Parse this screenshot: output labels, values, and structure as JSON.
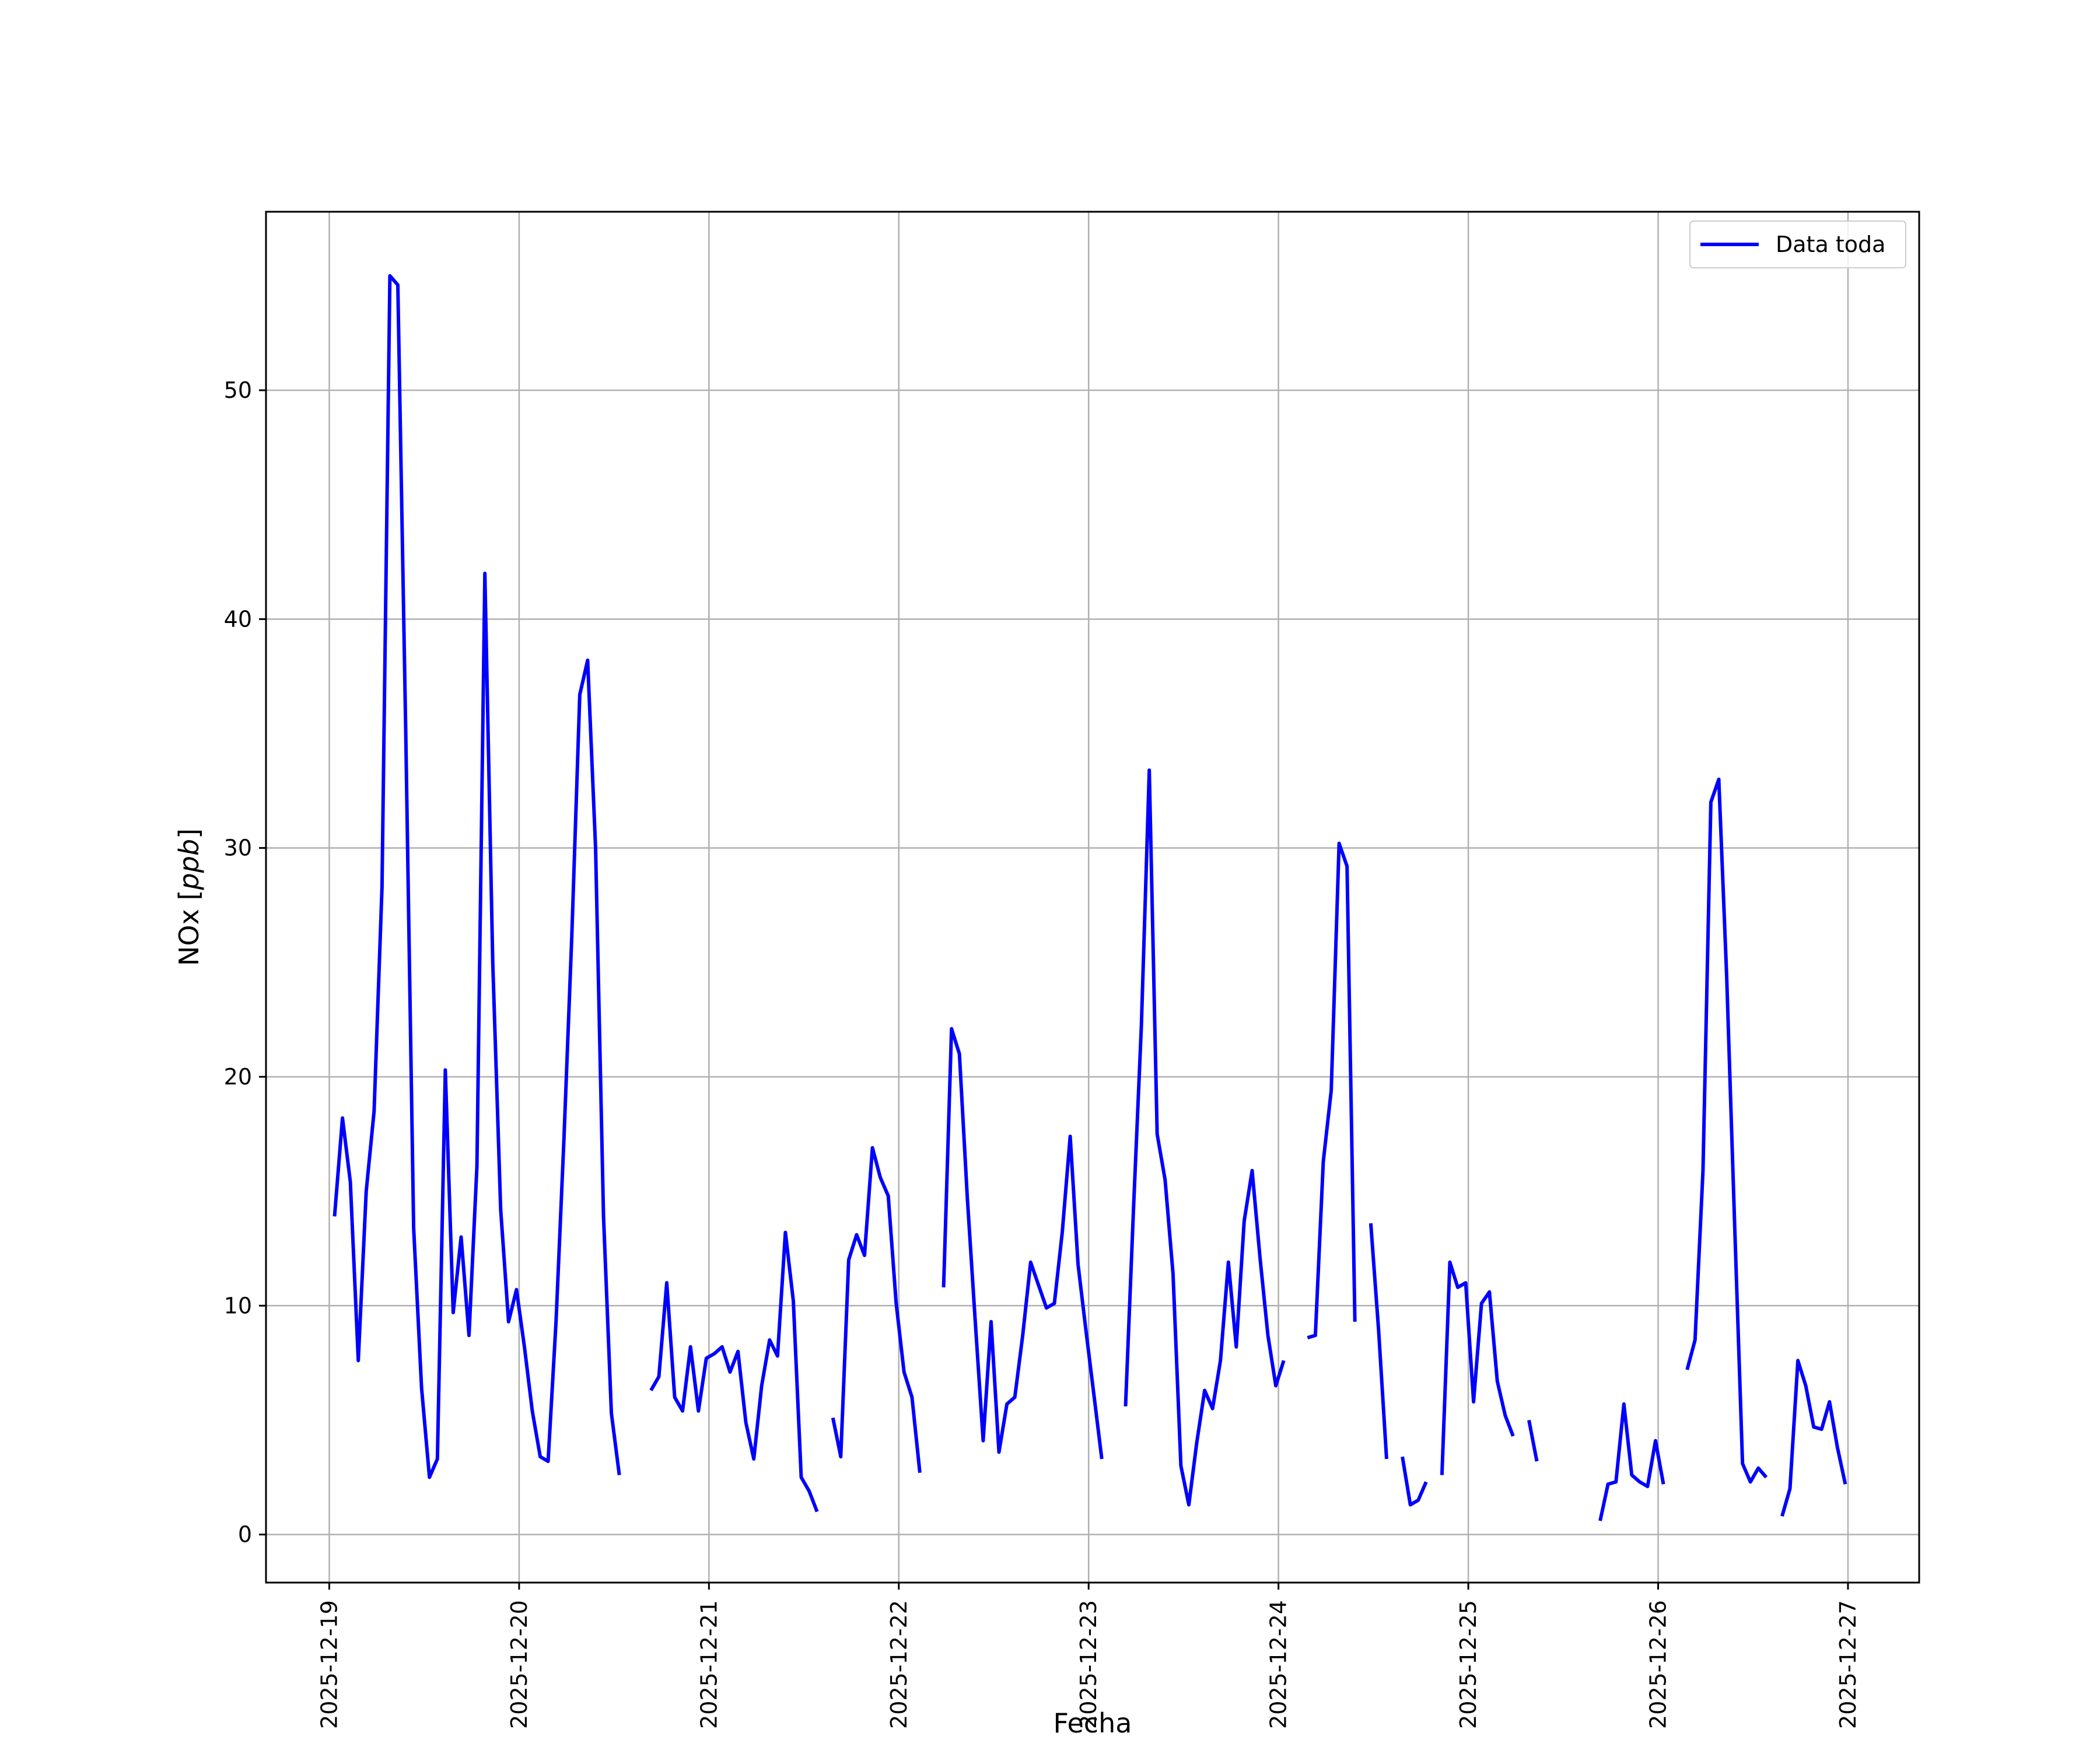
{
  "chart_data": {
    "type": "line",
    "title": "",
    "xlabel": "Fecha",
    "ylabel": "NOx [ppb]",
    "ylabel_main": "NOx [",
    "ylabel_unit": "ppb",
    "ylabel_close": "]",
    "x_unit": "date",
    "xlim": [
      "2025-12-18T16:00",
      "2025-12-27T09:00"
    ],
    "ylim": [
      -2.1,
      57.8
    ],
    "xticks": [
      "2025-12-19",
      "2025-12-20",
      "2025-12-21",
      "2025-12-22",
      "2025-12-23",
      "2025-12-24",
      "2025-12-25",
      "2025-12-26",
      "2025-12-27"
    ],
    "yticks": [
      0,
      10,
      20,
      30,
      40,
      50
    ],
    "ytick_labels": [
      "0",
      "10",
      "20",
      "30",
      "40",
      "50"
    ],
    "grid": true,
    "legend": {
      "position": "upper-right",
      "entries": [
        "Data toda"
      ]
    },
    "series": [
      {
        "name": "Data toda",
        "color": "#0000ff",
        "segments": [
          [
            [
              "2025-12-19T00:40",
              13.9
            ],
            [
              "2025-12-19T01:40",
              18.2
            ],
            [
              "2025-12-19T02:40",
              15.4
            ],
            [
              "2025-12-19T03:40",
              7.6
            ],
            [
              "2025-12-19T04:40",
              15.0
            ],
            [
              "2025-12-19T05:40",
              18.5
            ],
            [
              "2025-12-19T06:40",
              28.3
            ],
            [
              "2025-12-19T07:40",
              55.0
            ],
            [
              "2025-12-19T08:40",
              54.6
            ],
            [
              "2025-12-19T09:40",
              35.0
            ],
            [
              "2025-12-19T10:40",
              13.4
            ],
            [
              "2025-12-19T11:40",
              6.4
            ],
            [
              "2025-12-19T12:40",
              2.5
            ],
            [
              "2025-12-19T13:40",
              3.3
            ],
            [
              "2025-12-19T14:40",
              20.3
            ],
            [
              "2025-12-19T15:40",
              9.7
            ],
            [
              "2025-12-19T16:40",
              13.0
            ],
            [
              "2025-12-19T17:40",
              8.7
            ],
            [
              "2025-12-19T18:40",
              16.1
            ],
            [
              "2025-12-19T19:40",
              42.0
            ],
            [
              "2025-12-19T20:40",
              25.0
            ],
            [
              "2025-12-19T21:40",
              14.2
            ],
            [
              "2025-12-19T22:40",
              9.3
            ],
            [
              "2025-12-19T23:40",
              10.7
            ],
            [
              "2025-12-20T00:40",
              8.2
            ],
            [
              "2025-12-20T01:40",
              5.4
            ],
            [
              "2025-12-20T02:40",
              3.4
            ],
            [
              "2025-12-20T03:40",
              3.2
            ],
            [
              "2025-12-20T04:40",
              9.3
            ],
            [
              "2025-12-20T05:40",
              17.3
            ],
            [
              "2025-12-20T06:40",
              26.2
            ],
            [
              "2025-12-20T07:40",
              36.7
            ],
            [
              "2025-12-20T08:40",
              38.2
            ],
            [
              "2025-12-20T09:40",
              30.0
            ],
            [
              "2025-12-20T10:40",
              13.9
            ],
            [
              "2025-12-20T11:40",
              5.3
            ],
            [
              "2025-12-20T12:40",
              2.6
            ]
          ],
          [
            [
              "2025-12-20T16:40",
              6.3
            ],
            [
              "2025-12-20T17:40",
              6.9
            ],
            [
              "2025-12-20T18:40",
              11.0
            ],
            [
              "2025-12-20T19:40",
              6.0
            ],
            [
              "2025-12-20T20:40",
              5.4
            ],
            [
              "2025-12-20T21:40",
              8.2
            ],
            [
              "2025-12-20T22:40",
              5.4
            ],
            [
              "2025-12-20T23:40",
              7.7
            ],
            [
              "2025-12-21T00:40",
              7.9
            ],
            [
              "2025-12-21T01:40",
              8.2
            ],
            [
              "2025-12-21T02:40",
              7.1
            ],
            [
              "2025-12-21T03:40",
              8.0
            ],
            [
              "2025-12-21T04:40",
              4.9
            ],
            [
              "2025-12-21T05:40",
              3.3
            ],
            [
              "2025-12-21T06:40",
              6.5
            ],
            [
              "2025-12-21T07:40",
              8.5
            ],
            [
              "2025-12-21T08:40",
              7.8
            ],
            [
              "2025-12-21T09:40",
              13.2
            ],
            [
              "2025-12-21T10:40",
              10.2
            ],
            [
              "2025-12-21T11:40",
              2.5
            ],
            [
              "2025-12-21T12:40",
              1.9
            ],
            [
              "2025-12-21T13:40",
              1.0
            ]
          ],
          [
            [
              "2025-12-21T15:40",
              5.1
            ],
            [
              "2025-12-21T16:40",
              3.4
            ],
            [
              "2025-12-21T17:40",
              12.0
            ],
            [
              "2025-12-21T18:40",
              13.1
            ],
            [
              "2025-12-21T19:40",
              12.2
            ],
            [
              "2025-12-21T20:40",
              16.9
            ],
            [
              "2025-12-21T21:40",
              15.6
            ],
            [
              "2025-12-21T22:40",
              14.8
            ],
            [
              "2025-12-21T23:40",
              10.1
            ],
            [
              "2025-12-22T00:40",
              7.1
            ],
            [
              "2025-12-22T01:40",
              6.0
            ],
            [
              "2025-12-22T02:40",
              2.7
            ]
          ],
          [
            [
              "2025-12-22T05:40",
              10.8
            ],
            [
              "2025-12-22T06:40",
              22.1
            ],
            [
              "2025-12-22T07:40",
              21.0
            ],
            [
              "2025-12-22T08:40",
              14.7
            ],
            [
              "2025-12-22T09:40",
              9.3
            ],
            [
              "2025-12-22T10:40",
              4.1
            ],
            [
              "2025-12-22T11:40",
              9.3
            ],
            [
              "2025-12-22T12:40",
              3.6
            ],
            [
              "2025-12-22T13:40",
              5.7
            ],
            [
              "2025-12-22T14:40",
              6.0
            ],
            [
              "2025-12-22T15:40",
              8.7
            ],
            [
              "2025-12-22T16:40",
              11.9
            ],
            [
              "2025-12-22T17:40",
              10.9
            ],
            [
              "2025-12-22T18:40",
              9.9
            ],
            [
              "2025-12-22T19:40",
              10.1
            ],
            [
              "2025-12-22T20:40",
              13.2
            ],
            [
              "2025-12-22T21:40",
              17.4
            ],
            [
              "2025-12-22T22:40",
              11.8
            ],
            [
              "2025-12-22T23:40",
              8.9
            ],
            [
              "2025-12-23T00:40",
              6.1
            ],
            [
              "2025-12-23T01:40",
              3.3
            ]
          ],
          [
            [
              "2025-12-23T04:40",
              5.6
            ],
            [
              "2025-12-23T05:40",
              14.2
            ],
            [
              "2025-12-23T06:40",
              22.2
            ],
            [
              "2025-12-23T07:40",
              33.4
            ],
            [
              "2025-12-23T08:40",
              17.5
            ],
            [
              "2025-12-23T09:40",
              15.5
            ],
            [
              "2025-12-23T10:40",
              11.4
            ],
            [
              "2025-12-23T11:40",
              3.0
            ],
            [
              "2025-12-23T12:40",
              1.3
            ],
            [
              "2025-12-23T13:40",
              4.0
            ],
            [
              "2025-12-23T14:40",
              6.3
            ],
            [
              "2025-12-23T15:40",
              5.5
            ],
            [
              "2025-12-23T16:40",
              7.6
            ],
            [
              "2025-12-23T17:40",
              11.9
            ],
            [
              "2025-12-23T18:40",
              8.2
            ],
            [
              "2025-12-23T19:40",
              13.7
            ],
            [
              "2025-12-23T20:40",
              15.9
            ],
            [
              "2025-12-23T21:40",
              12.1
            ],
            [
              "2025-12-23T22:40",
              8.7
            ],
            [
              "2025-12-23T23:40",
              6.5
            ],
            [
              "2025-12-24T00:40",
              7.6
            ]
          ],
          [
            [
              "2025-12-24T03:40",
              8.6
            ],
            [
              "2025-12-24T04:40",
              8.7
            ],
            [
              "2025-12-24T05:40",
              16.3
            ],
            [
              "2025-12-24T06:40",
              19.4
            ],
            [
              "2025-12-24T07:40",
              30.2
            ],
            [
              "2025-12-24T08:40",
              29.2
            ],
            [
              "2025-12-24T09:40",
              9.3
            ]
          ],
          [
            [
              "2025-12-24T11:40",
              13.6
            ],
            [
              "2025-12-24T12:40",
              8.9
            ],
            [
              "2025-12-24T13:40",
              3.3
            ]
          ],
          [
            [
              "2025-12-24T15:40",
              3.4
            ],
            [
              "2025-12-24T16:40",
              1.3
            ],
            [
              "2025-12-24T17:40",
              1.5
            ],
            [
              "2025-12-24T18:40",
              2.3
            ]
          ],
          [
            [
              "2025-12-24T20:40",
              2.6
            ],
            [
              "2025-12-24T21:40",
              11.9
            ],
            [
              "2025-12-24T22:40",
              10.8
            ],
            [
              "2025-12-24T23:40",
              11.0
            ],
            [
              "2025-12-25T00:40",
              5.8
            ],
            [
              "2025-12-25T01:40",
              10.1
            ],
            [
              "2025-12-25T02:40",
              10.6
            ],
            [
              "2025-12-25T03:40",
              6.7
            ],
            [
              "2025-12-25T04:40",
              5.2
            ],
            [
              "2025-12-25T05:40",
              4.3
            ]
          ],
          [
            [
              "2025-12-25T07:40",
              5.0
            ],
            [
              "2025-12-25T08:40",
              3.2
            ]
          ],
          [
            [
              "2025-12-25T16:40",
              0.6
            ],
            [
              "2025-12-25T17:40",
              2.2
            ],
            [
              "2025-12-25T18:40",
              2.3
            ],
            [
              "2025-12-25T19:40",
              5.7
            ],
            [
              "2025-12-25T20:40",
              2.6
            ],
            [
              "2025-12-25T21:40",
              2.3
            ],
            [
              "2025-12-25T22:40",
              2.1
            ],
            [
              "2025-12-25T23:40",
              4.1
            ],
            [
              "2025-12-26T00:40",
              2.2
            ]
          ],
          [
            [
              "2025-12-26T03:40",
              7.2
            ],
            [
              "2025-12-26T04:40",
              8.5
            ],
            [
              "2025-12-26T05:40",
              15.9
            ],
            [
              "2025-12-26T06:40",
              32.0
            ],
            [
              "2025-12-26T07:40",
              33.0
            ],
            [
              "2025-12-26T08:40",
              24.4
            ],
            [
              "2025-12-26T09:40",
              13.6
            ],
            [
              "2025-12-26T10:40",
              3.1
            ],
            [
              "2025-12-26T11:40",
              2.3
            ],
            [
              "2025-12-26T12:40",
              2.9
            ],
            [
              "2025-12-26T13:40",
              2.5
            ]
          ],
          [
            [
              "2025-12-26T15:40",
              0.8
            ],
            [
              "2025-12-26T16:40",
              2.0
            ],
            [
              "2025-12-26T17:40",
              7.6
            ],
            [
              "2025-12-26T18:40",
              6.5
            ],
            [
              "2025-12-26T19:40",
              4.7
            ],
            [
              "2025-12-26T20:40",
              4.6
            ],
            [
              "2025-12-26T21:40",
              5.8
            ],
            [
              "2025-12-26T22:40",
              3.8
            ],
            [
              "2025-12-26T23:40",
              2.2
            ]
          ]
        ]
      }
    ]
  }
}
